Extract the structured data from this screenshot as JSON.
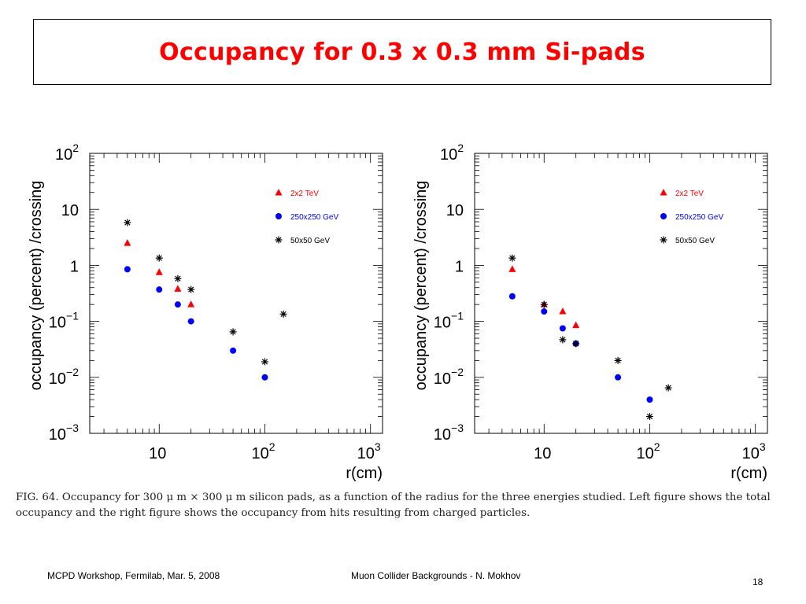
{
  "slide": {
    "title": "Occupancy for 0.3 x 0.3 mm Si-pads",
    "caption": "FIG. 64.  Occupancy for 300 μ m × 300 μ m silicon pads, as a function of the radius for the three energies studied. Left figure shows the total occupancy and the right figure shows the occupancy from hits resulting from charged particles.",
    "footer_left": "MCPD Workshop, Fermilab, Mar. 5, 2008",
    "footer_center": "Muon Collider Backgrounds -  N. Mokhov",
    "page_number": "18"
  },
  "colors": {
    "title": "#ff0000",
    "tev": "#ff0000",
    "gev250": "#0000ff",
    "gev50": "#000000"
  },
  "chart_data": [
    {
      "type": "scatter",
      "title": "",
      "xlabel": "r(cm)",
      "ylabel": "occupancy (percent) /crossing",
      "xscale": "log",
      "yscale": "log",
      "xlim": [
        2.2,
        1300
      ],
      "ylim": [
        0.001,
        100
      ],
      "xticks": [
        {
          "v": 10,
          "m": "10",
          "e": ""
        },
        {
          "v": 100,
          "m": "10",
          "e": "2"
        },
        {
          "v": 1000,
          "m": "10",
          "e": "3"
        }
      ],
      "yticks": [
        {
          "v": 0.001,
          "m": "10",
          "e": "−3"
        },
        {
          "v": 0.01,
          "m": "10",
          "e": "−2"
        },
        {
          "v": 0.1,
          "m": "10",
          "e": "−1"
        },
        {
          "v": 1,
          "m": "1",
          "e": ""
        },
        {
          "v": 10,
          "m": "10",
          "e": ""
        },
        {
          "v": 100,
          "m": "10",
          "e": "2"
        }
      ],
      "legend_position": "top-right",
      "series": [
        {
          "name": "2x2 TeV",
          "marker": "triangle",
          "color": "#ff0000",
          "x": [
            5,
            10,
            15,
            20
          ],
          "y": [
            2.5,
            0.75,
            0.38,
            0.2
          ]
        },
        {
          "name": "250x250 GeV",
          "marker": "circle",
          "color": "#0000ff",
          "x": [
            5,
            10,
            15,
            20,
            50,
            100
          ],
          "y": [
            0.85,
            0.37,
            0.2,
            0.1,
            0.03,
            0.01
          ]
        },
        {
          "name": "50x50 GeV",
          "marker": "star",
          "color": "#000000",
          "x": [
            5,
            10,
            15,
            20,
            50,
            100,
            150
          ],
          "y": [
            5.8,
            1.35,
            0.58,
            0.37,
            0.065,
            0.019,
            0.135
          ]
        }
      ]
    },
    {
      "type": "scatter",
      "title": "",
      "xlabel": "r(cm)",
      "ylabel": "occupancy (percent) /crossing",
      "xscale": "log",
      "yscale": "log",
      "xlim": [
        2.2,
        1300
      ],
      "ylim": [
        0.001,
        100
      ],
      "xticks": [
        {
          "v": 10,
          "m": "10",
          "e": ""
        },
        {
          "v": 100,
          "m": "10",
          "e": "2"
        },
        {
          "v": 1000,
          "m": "10",
          "e": "3"
        }
      ],
      "yticks": [
        {
          "v": 0.001,
          "m": "10",
          "e": "−3"
        },
        {
          "v": 0.01,
          "m": "10",
          "e": "−2"
        },
        {
          "v": 0.1,
          "m": "10",
          "e": "−1"
        },
        {
          "v": 1,
          "m": "1",
          "e": ""
        },
        {
          "v": 10,
          "m": "10",
          "e": ""
        },
        {
          "v": 100,
          "m": "10",
          "e": "2"
        }
      ],
      "legend_position": "top-right",
      "series": [
        {
          "name": "2x2 TeV",
          "marker": "triangle",
          "color": "#ff0000",
          "x": [
            5,
            10,
            15,
            20
          ],
          "y": [
            0.85,
            0.2,
            0.15,
            0.085
          ]
        },
        {
          "name": "250x250 GeV",
          "marker": "circle",
          "color": "#0000ff",
          "x": [
            5,
            10,
            15,
            20,
            50,
            100
          ],
          "y": [
            0.28,
            0.15,
            0.075,
            0.04,
            0.01,
            0.004
          ]
        },
        {
          "name": "50x50 GeV",
          "marker": "star",
          "color": "#000000",
          "x": [
            5,
            10,
            15,
            20,
            50,
            100,
            150
          ],
          "y": [
            1.35,
            0.2,
            0.047,
            0.04,
            0.02,
            0.002,
            0.0065
          ]
        }
      ]
    }
  ]
}
